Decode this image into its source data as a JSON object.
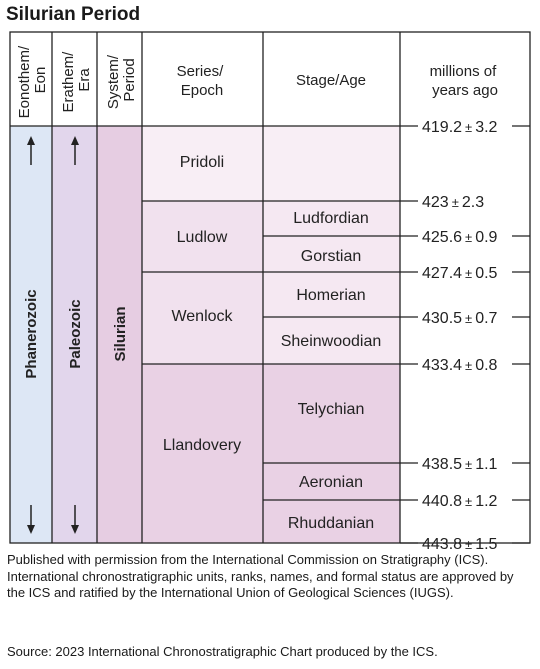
{
  "title": "Silurian Period",
  "headers": {
    "eonothem": [
      "Eonothem/",
      "Eon"
    ],
    "erathem": [
      "Erathem/",
      "Era"
    ],
    "system": [
      "System/",
      "Period"
    ],
    "series": [
      "Series/",
      "Epoch"
    ],
    "stage": "Stage/Age",
    "mya": [
      "millions of",
      "years ago"
    ]
  },
  "eon": "Phanerozoic",
  "era": "Paleozoic",
  "period": "Silurian",
  "epochs": [
    "Pridoli",
    "Ludlow",
    "Wenlock",
    "Llandovery"
  ],
  "stages": [
    "Ludfordian",
    "Gorstian",
    "Homerian",
    "Sheinwoodian",
    "Telychian",
    "Aeronian",
    "Rhuddanian"
  ],
  "boundaries": [
    {
      "age": "419.2",
      "pm": "3.2"
    },
    {
      "age": "423",
      "pm": "2.3"
    },
    {
      "age": "425.6",
      "pm": "0.9"
    },
    {
      "age": "427.4",
      "pm": "0.5"
    },
    {
      "age": "430.5",
      "pm": "0.7"
    },
    {
      "age": "433.4",
      "pm": "0.8"
    },
    {
      "age": "438.5",
      "pm": "1.1"
    },
    {
      "age": "440.8",
      "pm": "1.2"
    },
    {
      "age": "443.8",
      "pm": "1.5"
    }
  ],
  "pm_symbol": "±",
  "colors": {
    "eon": "#dde7f5",
    "era": "#e2d6ec",
    "period": "#e6cde2",
    "pridoli": "#f8eef5",
    "ludlow_wenlock": "#f1e1ee",
    "stage_light": "#f5e8f2",
    "llandovery": "#e9d1e4",
    "line": "#222222"
  },
  "footer": {
    "permission": "Published with permission from the International Commission on Stratigraphy (ICS). International chronostratigraphic units, ranks, names, and formal status are approved by the ICS and ratified by the International Union of Geological Sciences (IUGS).",
    "source": "Source: 2023 International Chronostratigraphic Chart produced by the ICS."
  }
}
